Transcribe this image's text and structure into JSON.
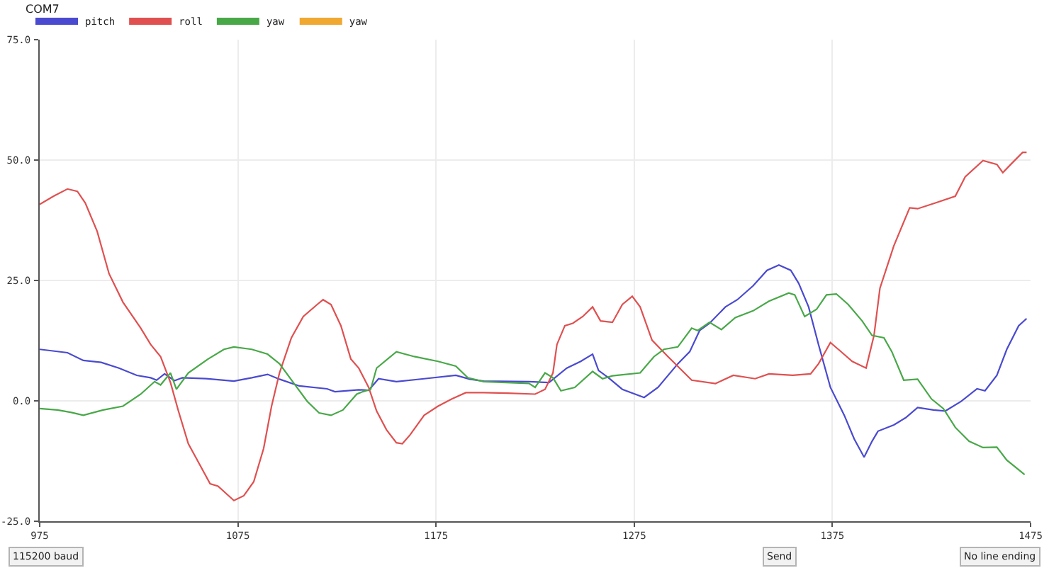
{
  "chart_data": {
    "type": "line",
    "title": "COM7",
    "xlim": [
      975,
      1475
    ],
    "xticks": [
      975,
      1075,
      1175,
      1275,
      1375,
      1475
    ],
    "ylim": [
      -25,
      75
    ],
    "yticks": [
      {
        "value": 75,
        "label": "75.0"
      },
      {
        "value": 50,
        "label": "50.0"
      },
      {
        "value": 25,
        "label": "25.0"
      },
      {
        "value": 0,
        "label": "0.0"
      },
      {
        "value": -25,
        "label": "-25.0"
      }
    ],
    "grid": true,
    "legend": "top left",
    "annotations": [
      "115200 baud",
      "Send",
      "No line ending"
    ],
    "series": [
      {
        "name": "pitch",
        "color": "#4a4ad0",
        "x": [
          975,
          989,
          997,
          1006,
          1015,
          1024,
          1031,
          1034,
          1038,
          1043,
          1047,
          1059,
          1073,
          1082,
          1090,
          1096,
          1106,
          1120,
          1124,
          1136,
          1141,
          1146,
          1155,
          1169,
          1185,
          1192,
          1199,
          1222,
          1232,
          1241,
          1248,
          1254,
          1257,
          1262,
          1269,
          1280,
          1287,
          1297,
          1303,
          1308,
          1313,
          1321,
          1327,
          1335,
          1342,
          1348,
          1354,
          1358,
          1363,
          1368,
          1374,
          1381,
          1386,
          1391,
          1395,
          1398,
          1406,
          1412,
          1418,
          1426,
          1432,
          1440,
          1448,
          1452,
          1458,
          1463,
          1469,
          1473
        ],
        "values": [
          10.7,
          10.0,
          8.4,
          8.0,
          6.8,
          5.3,
          4.8,
          4.3,
          5.6,
          4.2,
          4.8,
          4.6,
          4.1,
          4.8,
          5.5,
          4.5,
          3.1,
          2.5,
          1.9,
          2.3,
          2.2,
          4.6,
          4.0,
          4.6,
          5.3,
          4.5,
          4.1,
          4.0,
          3.8,
          6.8,
          8.2,
          9.7,
          6.3,
          4.8,
          2.4,
          0.7,
          2.8,
          7.7,
          10.2,
          14.6,
          16.1,
          19.5,
          21.0,
          23.9,
          27.1,
          28.2,
          27.1,
          24.4,
          19.5,
          11.7,
          2.8,
          -3.0,
          -7.9,
          -11.7,
          -8.4,
          -6.3,
          -5.0,
          -3.5,
          -1.4,
          -1.9,
          -2.1,
          -0.1,
          2.5,
          2.1,
          5.3,
          10.7,
          15.6,
          17.1
        ]
      },
      {
        "name": "roll",
        "color": "#e05050",
        "x": [
          975,
          982,
          989,
          994,
          998,
          1004,
          1010,
          1017,
          1026,
          1031,
          1036,
          1041,
          1045,
          1050,
          1054,
          1061,
          1065,
          1073,
          1078,
          1083,
          1088,
          1092,
          1096,
          1102,
          1108,
          1115,
          1118,
          1122,
          1127,
          1132,
          1136,
          1141,
          1145,
          1150,
          1155,
          1158,
          1162,
          1169,
          1176,
          1183,
          1190,
          1199,
          1211,
          1225,
          1230,
          1234,
          1236,
          1240,
          1244,
          1249,
          1254,
          1258,
          1264,
          1269,
          1274,
          1278,
          1284,
          1292,
          1304,
          1316,
          1325,
          1336,
          1343,
          1355,
          1364,
          1368,
          1374,
          1378,
          1385,
          1392,
          1396,
          1399,
          1406,
          1414,
          1418,
          1427,
          1437,
          1442,
          1451,
          1458,
          1461,
          1465,
          1471,
          1473
        ],
        "values": [
          40.8,
          42.5,
          44.0,
          43.5,
          41.1,
          35.2,
          26.4,
          20.5,
          15.1,
          11.7,
          9.2,
          3.8,
          -2.1,
          -8.9,
          -11.9,
          -17.2,
          -17.7,
          -20.7,
          -19.7,
          -16.8,
          -9.9,
          -1.1,
          5.8,
          13.1,
          17.5,
          20.0,
          21.0,
          20.0,
          15.6,
          8.7,
          6.8,
          2.8,
          -2.1,
          -6.0,
          -8.7,
          -8.9,
          -7.0,
          -3.0,
          -1.1,
          0.4,
          1.7,
          1.7,
          1.6,
          1.4,
          2.4,
          5.8,
          11.7,
          15.6,
          16.1,
          17.5,
          19.5,
          16.6,
          16.3,
          20.0,
          21.7,
          19.5,
          12.6,
          9.2,
          4.3,
          3.6,
          5.3,
          4.6,
          5.6,
          5.3,
          5.6,
          7.7,
          12.1,
          10.7,
          8.2,
          6.8,
          13.6,
          23.4,
          32.2,
          40.1,
          39.9,
          41.1,
          42.5,
          46.5,
          49.9,
          49.1,
          47.4,
          49.1,
          51.6,
          51.6
        ]
      },
      {
        "name": "yaw",
        "color": "#48a848",
        "x": [
          975,
          984,
          991,
          997,
          1007,
          1017,
          1026,
          1033,
          1036,
          1041,
          1044,
          1050,
          1060,
          1068,
          1073,
          1082,
          1090,
          1096,
          1103,
          1110,
          1116,
          1122,
          1128,
          1135,
          1138,
          1142,
          1145,
          1155,
          1164,
          1176,
          1185,
          1191,
          1199,
          1222,
          1225,
          1230,
          1234,
          1238,
          1245,
          1254,
          1259,
          1264,
          1278,
          1285,
          1290,
          1297,
          1304,
          1307,
          1313,
          1319,
          1326,
          1335,
          1343,
          1353,
          1356,
          1361,
          1367,
          1372,
          1377,
          1383,
          1390,
          1395,
          1401,
          1405,
          1411,
          1418,
          1425,
          1431,
          1437,
          1444,
          1451,
          1458,
          1463,
          1472
        ],
        "values": [
          -1.6,
          -1.9,
          -2.4,
          -3.0,
          -1.9,
          -1.1,
          1.4,
          4.0,
          3.3,
          5.8,
          2.4,
          5.8,
          8.7,
          10.7,
          11.2,
          10.7,
          9.7,
          7.7,
          3.8,
          -0.1,
          -2.5,
          -3.0,
          -1.9,
          1.4,
          1.9,
          2.4,
          6.8,
          10.2,
          9.2,
          8.2,
          7.2,
          4.8,
          4.0,
          3.6,
          2.8,
          5.8,
          4.8,
          2.1,
          2.8,
          6.1,
          4.6,
          5.2,
          5.8,
          9.2,
          10.7,
          11.2,
          15.1,
          14.6,
          16.3,
          14.8,
          17.3,
          18.7,
          20.7,
          22.4,
          22.0,
          17.5,
          19.0,
          22.0,
          22.2,
          20.0,
          16.6,
          13.6,
          13.1,
          10.2,
          4.3,
          4.5,
          0.4,
          -1.6,
          -5.5,
          -8.4,
          -9.7,
          -9.6,
          -12.3,
          -15.3
        ]
      },
      {
        "name": "yaw",
        "color": "#f0a830"
      }
    ]
  }
}
